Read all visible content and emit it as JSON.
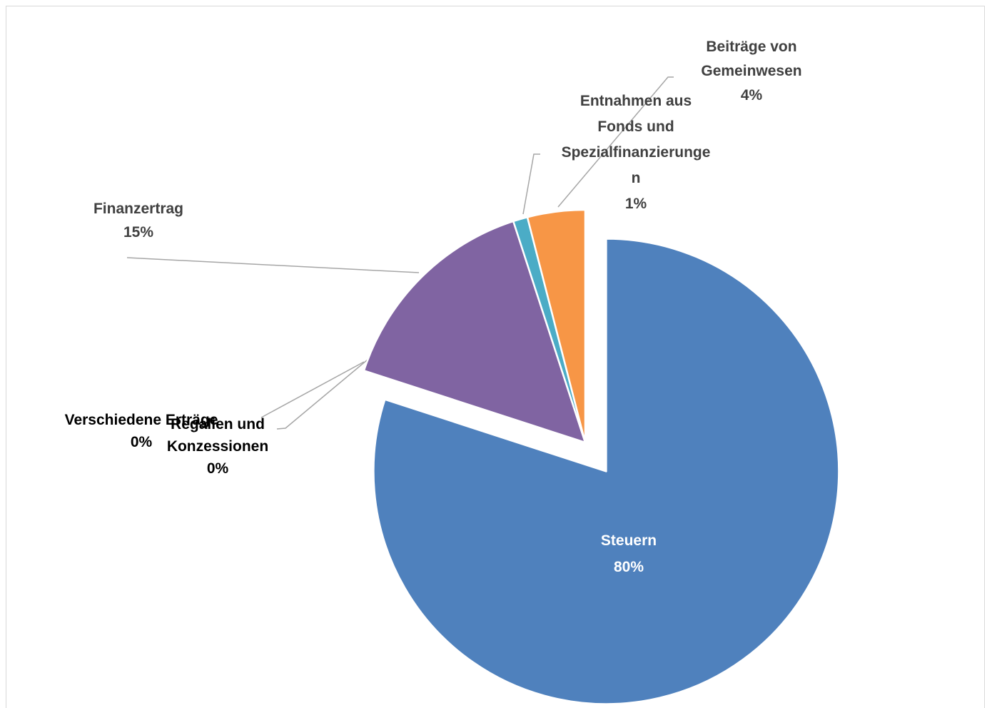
{
  "chart_data": {
    "type": "pie",
    "title": "",
    "slices": [
      {
        "name": "Steuern",
        "value": 80,
        "label": "80%",
        "color": "#4f81bd",
        "exploded": true
      },
      {
        "name": "Regalien und Konzessionen",
        "value": 0,
        "label": "0%",
        "color": "#c0504d",
        "exploded": false
      },
      {
        "name": "Verschiedene Erträge",
        "value": 0,
        "label": "0%",
        "color": "#9bbb59",
        "exploded": false
      },
      {
        "name": "Finanzertrag",
        "value": 15,
        "label": "15%",
        "color": "#8064a2",
        "exploded": false
      },
      {
        "name": "Entnahmen aus Fonds und Spezialfinanzierungen",
        "value": 1,
        "label": "1%",
        "color": "#4bacc6",
        "exploded": false
      },
      {
        "name": "Beiträge von Gemeinwesen",
        "value": 4,
        "label": "4%",
        "color": "#f79646",
        "exploded": false
      }
    ],
    "grid": false,
    "legend": "none"
  }
}
